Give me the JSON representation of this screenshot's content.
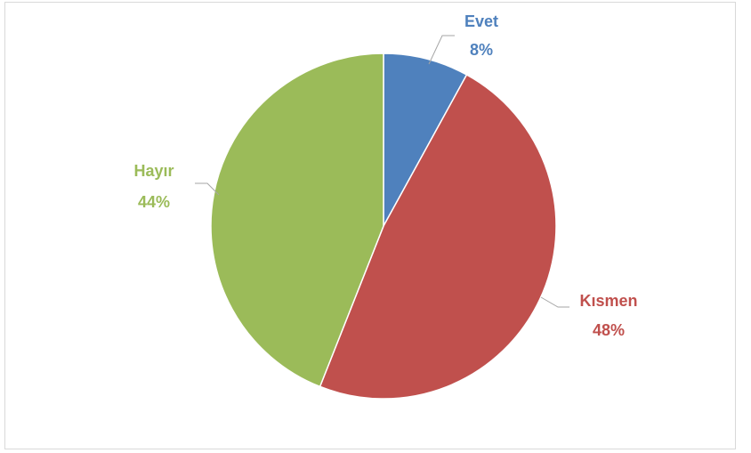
{
  "chart_data": {
    "type": "pie",
    "title": "",
    "categories": [
      "Evet",
      "Kısmen",
      "Hayır"
    ],
    "values": [
      8,
      48,
      44
    ],
    "value_labels": [
      "8%",
      "48%",
      "44%"
    ],
    "colors": [
      "#4f81bd",
      "#c0504d",
      "#9bbb59"
    ],
    "start_angle": "12 o'clock",
    "direction": "clockwise",
    "legend": "none",
    "label_style": "outside with leader lines"
  }
}
